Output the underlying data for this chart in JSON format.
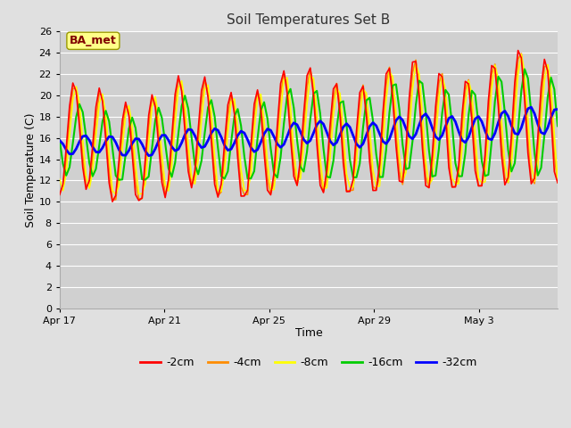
{
  "title": "Soil Temperatures Set B",
  "xlabel": "Time",
  "ylabel": "Soil Temperature (C)",
  "ylim": [
    0,
    26
  ],
  "yticks": [
    0,
    2,
    4,
    6,
    8,
    10,
    12,
    14,
    16,
    18,
    20,
    22,
    24,
    26
  ],
  "fig_bg": "#e0e0e0",
  "plot_bg": "#d0d0d0",
  "grid_color": "#ffffff",
  "annotation_text": "BA_met",
  "annotation_box_color": "#ffff88",
  "annotation_text_color": "#800000",
  "annotation_edge_color": "#999900",
  "series_colors": [
    "#ff0000",
    "#ff8c00",
    "#ffff00",
    "#00cc00",
    "#0000ff"
  ],
  "series_labels": [
    "-2cm",
    "-4cm",
    "-8cm",
    "-16cm",
    "-32cm"
  ],
  "series_linewidths": [
    1.2,
    1.2,
    1.2,
    1.5,
    2.0
  ],
  "num_days": 19,
  "tick_positions": [
    0,
    4,
    8,
    12,
    16
  ],
  "tick_labels": [
    "Apr 17",
    "Apr 21",
    "Apr 25",
    "Apr 29",
    "May 3"
  ]
}
